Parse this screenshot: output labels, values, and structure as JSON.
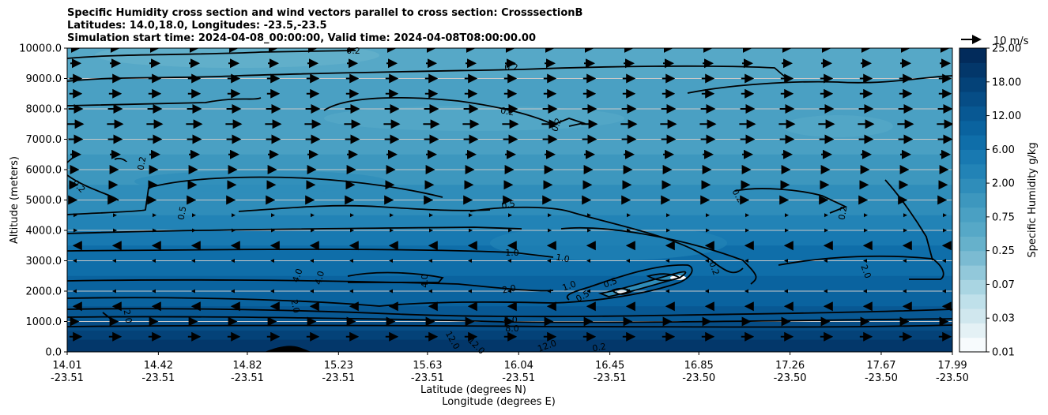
{
  "title_lines": [
    "Specific Humidity cross section and wind vectors parallel to cross section: CrosssectionB",
    "Latitudes: 14.0,18.0, Longitudes: -23.5,-23.5",
    "Simulation start time: 2024-04-08_00:00:00, Valid time: 2024-04-08T08:00:00.00"
  ],
  "axes": {
    "ylabel": "Altitude (meters)",
    "xlabel_lat": "Latitude (degrees N)",
    "xlabel_lon": "Longitude (degrees E)"
  },
  "colorbar": {
    "label": "Specific Humidity g/kg",
    "levels": [
      "0.01",
      "0.03",
      "0.07",
      "0.25",
      "0.75",
      "2.00",
      "6.00",
      "12.00",
      "18.00",
      "25.00"
    ],
    "colors": [
      "#f7fbfd",
      "#e4f1f5",
      "#d0e7ee",
      "#bfe0ea",
      "#a9d5e2",
      "#92c8da",
      "#7bbbd2",
      "#66b1cb",
      "#56a8c7",
      "#4aa0c3",
      "#3d97be",
      "#2f8dba",
      "#2283b6",
      "#1879b1",
      "#0f6ea9",
      "#0a639f",
      "#085893",
      "#064d86",
      "#044278",
      "#03376a",
      "#022b5b"
    ]
  },
  "quiver_key": {
    "label": "10 m/s"
  },
  "contour_labels": [
    "0.2",
    "0.2",
    "0.2",
    "0.2",
    "0.2",
    "0.2",
    "0.2",
    "0.2",
    "0.2",
    "0.5",
    "0.5",
    "0.5",
    "0.5",
    "1.0",
    "1.0",
    "1.0",
    "2.0",
    "2.0",
    "2.0",
    "2.0",
    "4.0",
    "4.0",
    "4.0",
    "4.0",
    "8.0",
    "12.0",
    "12.0",
    "12.0",
    "0.2"
  ],
  "chart_data": {
    "type": "heatmap",
    "title": "Specific Humidity cross section and wind vectors parallel to cross section: CrosssectionB",
    "xlabel": "Latitude (degrees N) / Longitude (degrees E)",
    "ylabel": "Altitude (meters)",
    "x_ticks_lat": [
      "14.01",
      "14.42",
      "14.82",
      "15.23",
      "15.63",
      "16.04",
      "16.45",
      "16.85",
      "17.26",
      "17.67",
      "17.99"
    ],
    "x_ticks_lon": [
      "-23.51",
      "-23.51",
      "-23.51",
      "-23.51",
      "-23.51",
      "-23.51",
      "-23.51",
      "-23.50",
      "-23.50",
      "-23.50",
      "-23.50"
    ],
    "y_ticks": [
      "0.0",
      "1000.0",
      "2000.0",
      "3000.0",
      "4000.0",
      "5000.0",
      "6000.0",
      "7000.0",
      "8000.0",
      "9000.0",
      "10000.0"
    ],
    "ylim": [
      0,
      10000
    ],
    "xlim": [
      14.01,
      17.99
    ],
    "grid": "horizontal",
    "colorbar_range_gkg": [
      0.01,
      25.0
    ],
    "humidity_profile": [
      {
        "altitude": 0,
        "q": 16.0
      },
      {
        "altitude": 500,
        "q": 12.0
      },
      {
        "altitude": 1000,
        "q": 8.0
      },
      {
        "altitude": 2000,
        "q": 4.0
      },
      {
        "altitude": 3000,
        "q": 2.0
      },
      {
        "altitude": 4000,
        "q": 1.0
      },
      {
        "altitude": 5000,
        "q": 0.5
      },
      {
        "altitude": 6000,
        "q": 0.35
      },
      {
        "altitude": 8000,
        "q": 0.2
      },
      {
        "altitude": 10000,
        "q": 0.15
      }
    ],
    "wind_profile_ms": [
      {
        "altitude": 500,
        "u": 6
      },
      {
        "altitude": 1000,
        "u": 3
      },
      {
        "altitude": 1500,
        "u": -1
      },
      {
        "altitude": 2000,
        "u": -0.5
      },
      {
        "altitude": 3000,
        "u": -0.5
      },
      {
        "altitude": 3500,
        "u": -1
      },
      {
        "altitude": 4000,
        "u": 0
      },
      {
        "altitude": 4500,
        "u": 0.5
      },
      {
        "altitude": 5000,
        "u": 1
      },
      {
        "altitude": 5500,
        "u": 2
      },
      {
        "altitude": 6000,
        "u": 3
      },
      {
        "altitude": 6500,
        "u": 5
      },
      {
        "altitude": 7000,
        "u": 7
      },
      {
        "altitude": 7500,
        "u": 8
      },
      {
        "altitude": 8000,
        "u": 7
      },
      {
        "altitude": 8500,
        "u": 6
      },
      {
        "altitude": 9000,
        "u": 6
      },
      {
        "altitude": 9500,
        "u": 5
      },
      {
        "altitude": 10000,
        "u": 4
      }
    ]
  }
}
